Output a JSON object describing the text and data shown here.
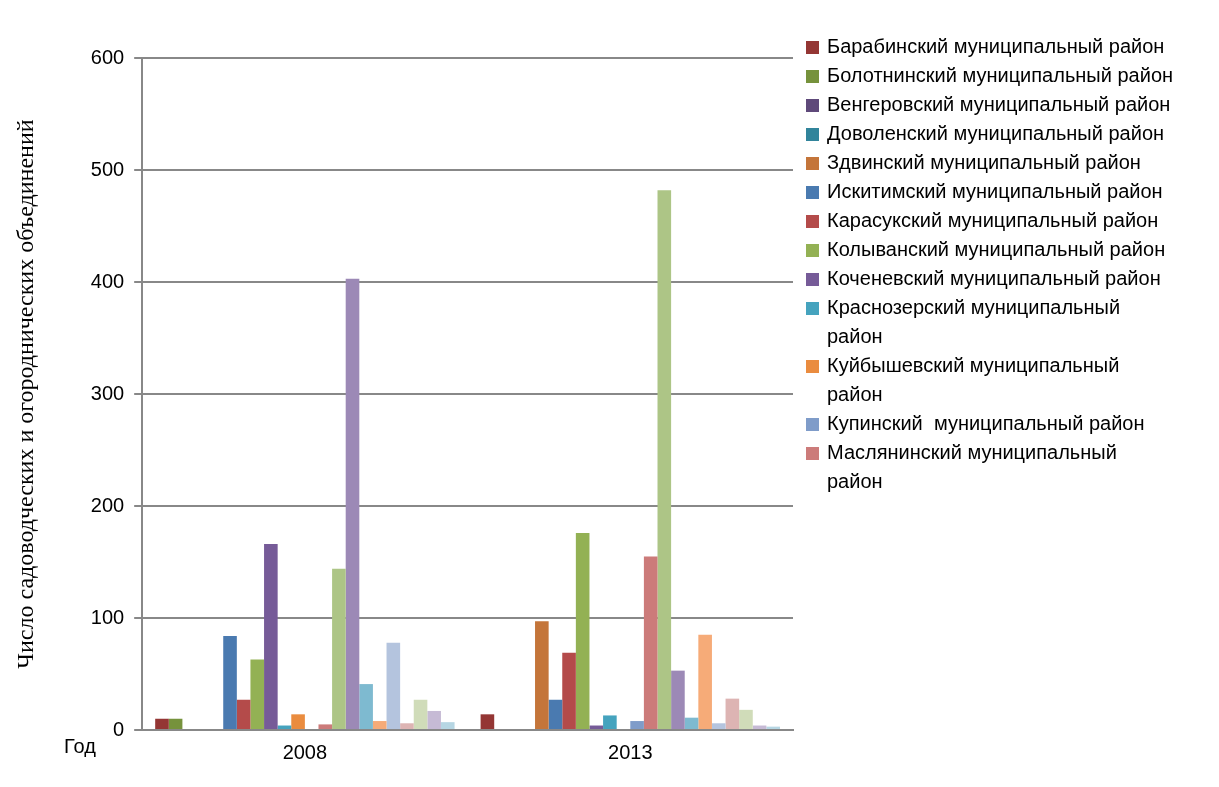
{
  "chart_data": {
    "type": "bar",
    "ylabel": "Число садоводческих и огороднических объединений",
    "xlabel": "Год",
    "categories": [
      "2008",
      "2013"
    ],
    "ylim": [
      0,
      600
    ],
    "yticks": [
      0,
      100,
      200,
      300,
      400,
      500,
      600
    ],
    "grid": "y",
    "legend": "right",
    "series": [
      {
        "name": "Барабинский муниципальный район",
        "color": "#943634",
        "values": [
          10,
          14
        ]
      },
      {
        "name": "Болотнинский муниципальный район",
        "color": "#76923c",
        "values": [
          10,
          0
        ]
      },
      {
        "name": "Венгеровский муниципальный район",
        "color": "#5f497a",
        "values": [
          0,
          0
        ]
      },
      {
        "name": "Доволенский муниципальный район",
        "color": "#31849b",
        "values": [
          0,
          0
        ]
      },
      {
        "name": "Здвинский муниципальный район",
        "color": "#c4753a",
        "values": [
          0,
          97
        ]
      },
      {
        "name": "Искитимский муниципальный район",
        "color": "#4a7ab0",
        "values": [
          84,
          27
        ]
      },
      {
        "name": "Карасукский муниципальный район",
        "color": "#b44b4a",
        "values": [
          27,
          69
        ]
      },
      {
        "name": "Колыванский муниципальный район",
        "color": "#93b154",
        "values": [
          63,
          176
        ]
      },
      {
        "name": "Коченевский муниципальный район",
        "color": "#765b98",
        "values": [
          166,
          4
        ]
      },
      {
        "name": "Краснозерский муниципальный район",
        "color": "#45a3be",
        "values": [
          4,
          13
        ]
      },
      {
        "name": "Куйбышевский муниципальный район",
        "color": "#ea8c3f",
        "values": [
          14,
          0
        ]
      },
      {
        "name": "Купинский  муниципальный район",
        "color": "#7f9cc9",
        "values": [
          0,
          8
        ]
      },
      {
        "name": "Маслянинский муниципальный район",
        "color": "#cc7b7a",
        "values": [
          5,
          155
        ]
      },
      {
        "color": "#adc586",
        "values": [
          144,
          482
        ]
      },
      {
        "color": "#9c89b6",
        "values": [
          403,
          53
        ]
      },
      {
        "color": "#7ebad0",
        "values": [
          41,
          11
        ]
      },
      {
        "color": "#f6ab78",
        "values": [
          8,
          85
        ]
      },
      {
        "color": "#b4c4de",
        "values": [
          78,
          6
        ]
      },
      {
        "color": "#ddb4b3",
        "values": [
          6,
          28
        ]
      },
      {
        "color": "#d0dcb9",
        "values": [
          27,
          18
        ]
      },
      {
        "color": "#c6bad5",
        "values": [
          17,
          4
        ]
      },
      {
        "color": "#b6d6e3",
        "values": [
          7,
          3
        ]
      }
    ]
  }
}
